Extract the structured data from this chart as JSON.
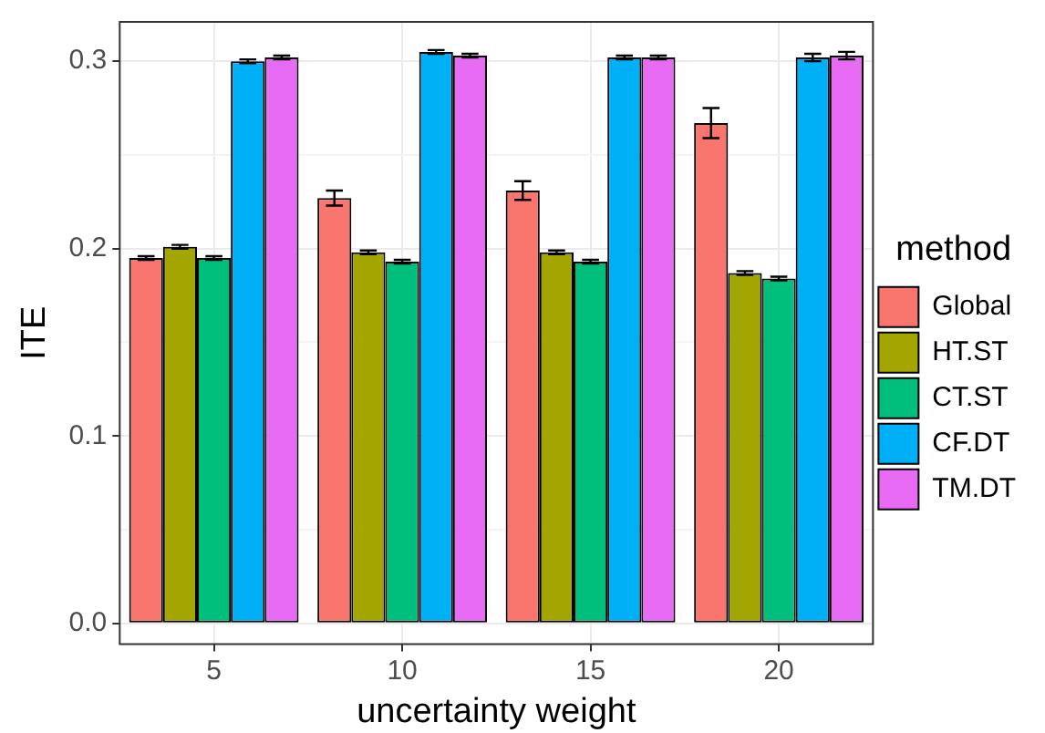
{
  "chart_data": {
    "type": "bar",
    "xlabel": "uncertainty weight",
    "ylabel": "ITE",
    "legend_title": "method",
    "categories": [
      "5",
      "10",
      "15",
      "20"
    ],
    "series": [
      {
        "name": "Global",
        "color": "#f8766d",
        "values": [
          0.195,
          0.227,
          0.231,
          0.267
        ],
        "errors": [
          0.001,
          0.004,
          0.005,
          0.008
        ]
      },
      {
        "name": "HT.ST",
        "color": "#a3a500",
        "values": [
          0.201,
          0.198,
          0.198,
          0.187
        ],
        "errors": [
          0.001,
          0.001,
          0.001,
          0.001
        ]
      },
      {
        "name": "CT.ST",
        "color": "#00bf7d",
        "values": [
          0.195,
          0.193,
          0.193,
          0.184
        ],
        "errors": [
          0.001,
          0.001,
          0.001,
          0.001
        ]
      },
      {
        "name": "CF.DT",
        "color": "#00b0f6",
        "values": [
          0.3,
          0.305,
          0.302,
          0.302
        ],
        "errors": [
          0.001,
          0.001,
          0.001,
          0.002
        ]
      },
      {
        "name": "TM.DT",
        "color": "#e76bf3",
        "values": [
          0.302,
          0.303,
          0.302,
          0.303
        ],
        "errors": [
          0.001,
          0.001,
          0.001,
          0.002
        ]
      }
    ],
    "ylim": [
      -0.011,
      0.321
    ],
    "yticks": [
      {
        "value": 0,
        "label": "0.0"
      },
      {
        "value": 0.05,
        "label": null
      },
      {
        "value": 0.1,
        "label": "0.1"
      },
      {
        "value": 0.15,
        "label": null
      },
      {
        "value": 0.2,
        "label": "0.2"
      },
      {
        "value": 0.25,
        "label": null
      },
      {
        "value": 0.3,
        "label": "0.3"
      }
    ],
    "grid": true,
    "legend": "right"
  }
}
